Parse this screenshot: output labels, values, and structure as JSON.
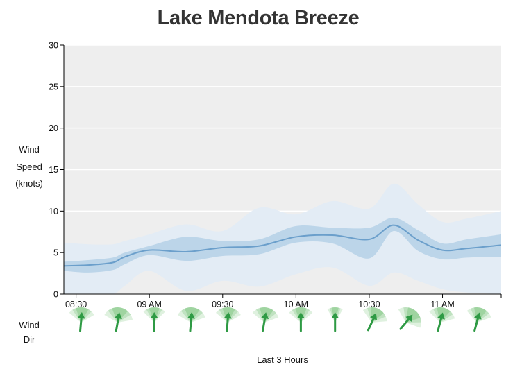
{
  "chart_data": {
    "type": "area",
    "title": "Lake Mendota Breeze",
    "ylabel_lines": [
      "Wind",
      "Speed",
      "(knots)"
    ],
    "xlabel": "Last 3 Hours",
    "dir_label_lines": [
      "Wind",
      "Dir"
    ],
    "ylim": [
      0,
      30
    ],
    "y_ticks": [
      0,
      5,
      10,
      15,
      20,
      25,
      30
    ],
    "x_range_minutes": [
      505,
      684
    ],
    "x_ticks": [
      {
        "label": "08:30",
        "minute": 510
      },
      {
        "label": "09 AM",
        "minute": 540
      },
      {
        "label": "09:30",
        "minute": 570
      },
      {
        "label": "10 AM",
        "minute": 600
      },
      {
        "label": "10:30",
        "minute": 630
      },
      {
        "label": "11 AM",
        "minute": 660
      }
    ],
    "grid": true,
    "series": [
      {
        "role": "speed",
        "x_minutes": [
          505,
          515,
          525,
          530,
          540,
          555,
          570,
          585,
          600,
          615,
          630,
          640,
          650,
          660,
          670,
          684
        ],
        "mean": [
          3.4,
          3.5,
          3.8,
          4.5,
          5.3,
          5.1,
          5.6,
          5.8,
          6.9,
          7.1,
          6.6,
          8.3,
          6.5,
          5.3,
          5.5,
          5.9
        ],
        "inner_low": [
          2.8,
          2.6,
          2.9,
          3.6,
          4.7,
          4.0,
          4.6,
          4.8,
          6.2,
          6.1,
          4.3,
          7.6,
          5.2,
          4.2,
          4.4,
          4.5
        ],
        "inner_high": [
          3.9,
          4.1,
          4.4,
          5.0,
          5.8,
          6.9,
          6.4,
          6.6,
          8.2,
          8.0,
          8.0,
          9.2,
          7.7,
          6.1,
          6.6,
          7.2
        ],
        "outer_low": [
          0.0,
          0.0,
          0.0,
          1.0,
          2.8,
          0.4,
          1.6,
          0.9,
          2.4,
          3.2,
          1.0,
          2.6,
          1.6,
          0.6,
          0.2,
          0.0
        ],
        "outer_high": [
          6.2,
          6.0,
          6.0,
          6.4,
          7.2,
          8.4,
          7.6,
          10.4,
          9.6,
          11.2,
          10.3,
          13.3,
          10.8,
          8.7,
          9.1,
          10.0
        ]
      }
    ],
    "wind_dir": [
      {
        "minute": 512,
        "deg": 5,
        "spread": 55
      },
      {
        "minute": 527,
        "deg": 10,
        "spread": 70
      },
      {
        "minute": 542,
        "deg": 0,
        "spread": 45
      },
      {
        "minute": 557,
        "deg": 5,
        "spread": 65
      },
      {
        "minute": 572,
        "deg": 5,
        "spread": 55
      },
      {
        "minute": 587,
        "deg": 10,
        "spread": 60
      },
      {
        "minute": 602,
        "deg": 0,
        "spread": 50
      },
      {
        "minute": 616,
        "deg": 0,
        "spread": 30
      },
      {
        "minute": 631,
        "deg": 25,
        "spread": 60
      },
      {
        "minute": 645,
        "deg": 40,
        "spread": 70
      },
      {
        "minute": 659,
        "deg": 15,
        "spread": 60
      },
      {
        "minute": 674,
        "deg": 15,
        "spread": 55
      }
    ],
    "colors": {
      "plot_bg": "#eeeeee",
      "grid": "#ffffff",
      "outer_band": "#e3ecf5",
      "inner_band": "#bcd5e9",
      "mean_line": "#6b9fcb",
      "arrow": "#2e9a44",
      "wedge": "#4caf50"
    }
  }
}
